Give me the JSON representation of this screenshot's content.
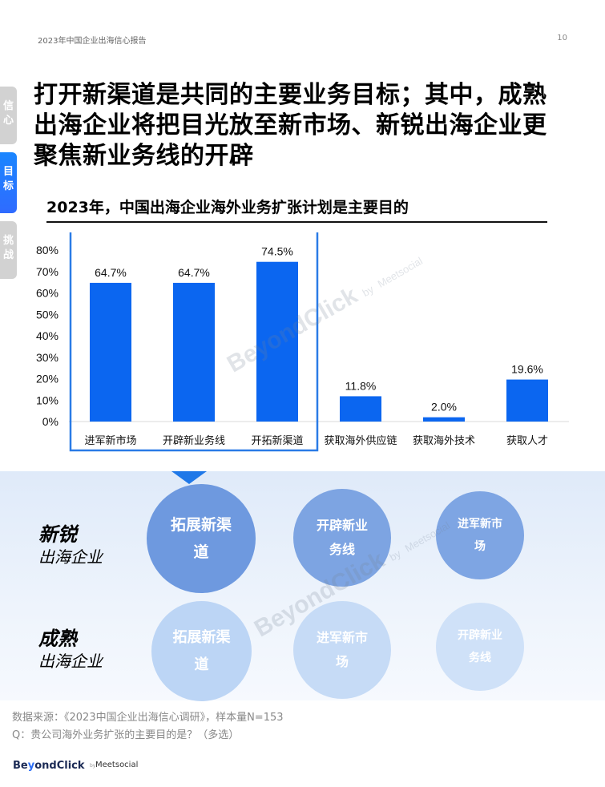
{
  "header": {
    "report_title": "2023年中国企业出海信心报告",
    "page_number": "10"
  },
  "side_tabs": [
    {
      "label": [
        "信",
        "心"
      ],
      "active": false
    },
    {
      "label": [
        "目",
        "标"
      ],
      "active": true
    },
    {
      "label": [
        "挑",
        "战"
      ],
      "active": false
    }
  ],
  "headline": [
    "打开新渠道是共同的主要业务目标；其中，成熟",
    "出海企业将把目光放至新市场、新锐出海企业更",
    "聚焦新业务线的开辟"
  ],
  "chart_title": "2023年，中国出海企业海外业务扩张计划是主要目的",
  "chart_data": {
    "type": "bar",
    "title": "2023年，中国出海企业海外业务扩张计划是主要目的",
    "categories": [
      "进军新市场",
      "开辟新业务线",
      "开拓新渠道",
      "获取海外供应链",
      "获取海外技术",
      "获取人才"
    ],
    "values": [
      64.7,
      64.7,
      74.5,
      11.8,
      2.0,
      19.6
    ],
    "value_labels": [
      "64.7%",
      "64.7%",
      "74.5%",
      "11.8%",
      "2.0%",
      "19.6%"
    ],
    "y_ticks": [
      "80%",
      "70%",
      "60%",
      "50%",
      "40%",
      "30%",
      "20%",
      "10%",
      "0%"
    ],
    "ylim": [
      0,
      80
    ],
    "highlight_categories": [
      "进军新市场",
      "开辟新业务线",
      "开拓新渠道"
    ],
    "bar_color": "#0b66f0",
    "highlight_color": "#2a7be6"
  },
  "comparison": {
    "rows": [
      {
        "label_main": "新锐",
        "label_sub": "出海企业",
        "items": [
          "拓展新渠道",
          "开辟新业务线",
          "进军新市场"
        ]
      },
      {
        "label_main": "成熟",
        "label_sub": "出海企业",
        "items": [
          "拓展新渠道",
          "进军新市场",
          "开辟新业务线"
        ]
      }
    ]
  },
  "watermark": {
    "brand": "BeyondClick",
    "by": "by",
    "partner": "Meetsocial"
  },
  "footer": {
    "source": "数据来源：《2023中国企业出海信心调研》，样本量N=153",
    "question": "Q：贵公司海外业务扩张的主要目的是？（多选）"
  },
  "logo": {
    "brand_a": "Be",
    "brand_x": "y",
    "brand_b": "ondClick",
    "by": "by",
    "partner": "Meetsocial"
  },
  "colors": {
    "accent": "#1f78e8",
    "bar": "#0b66f0",
    "circle_dark": "#6f9be0",
    "circle_light": "#c2d9f6"
  }
}
